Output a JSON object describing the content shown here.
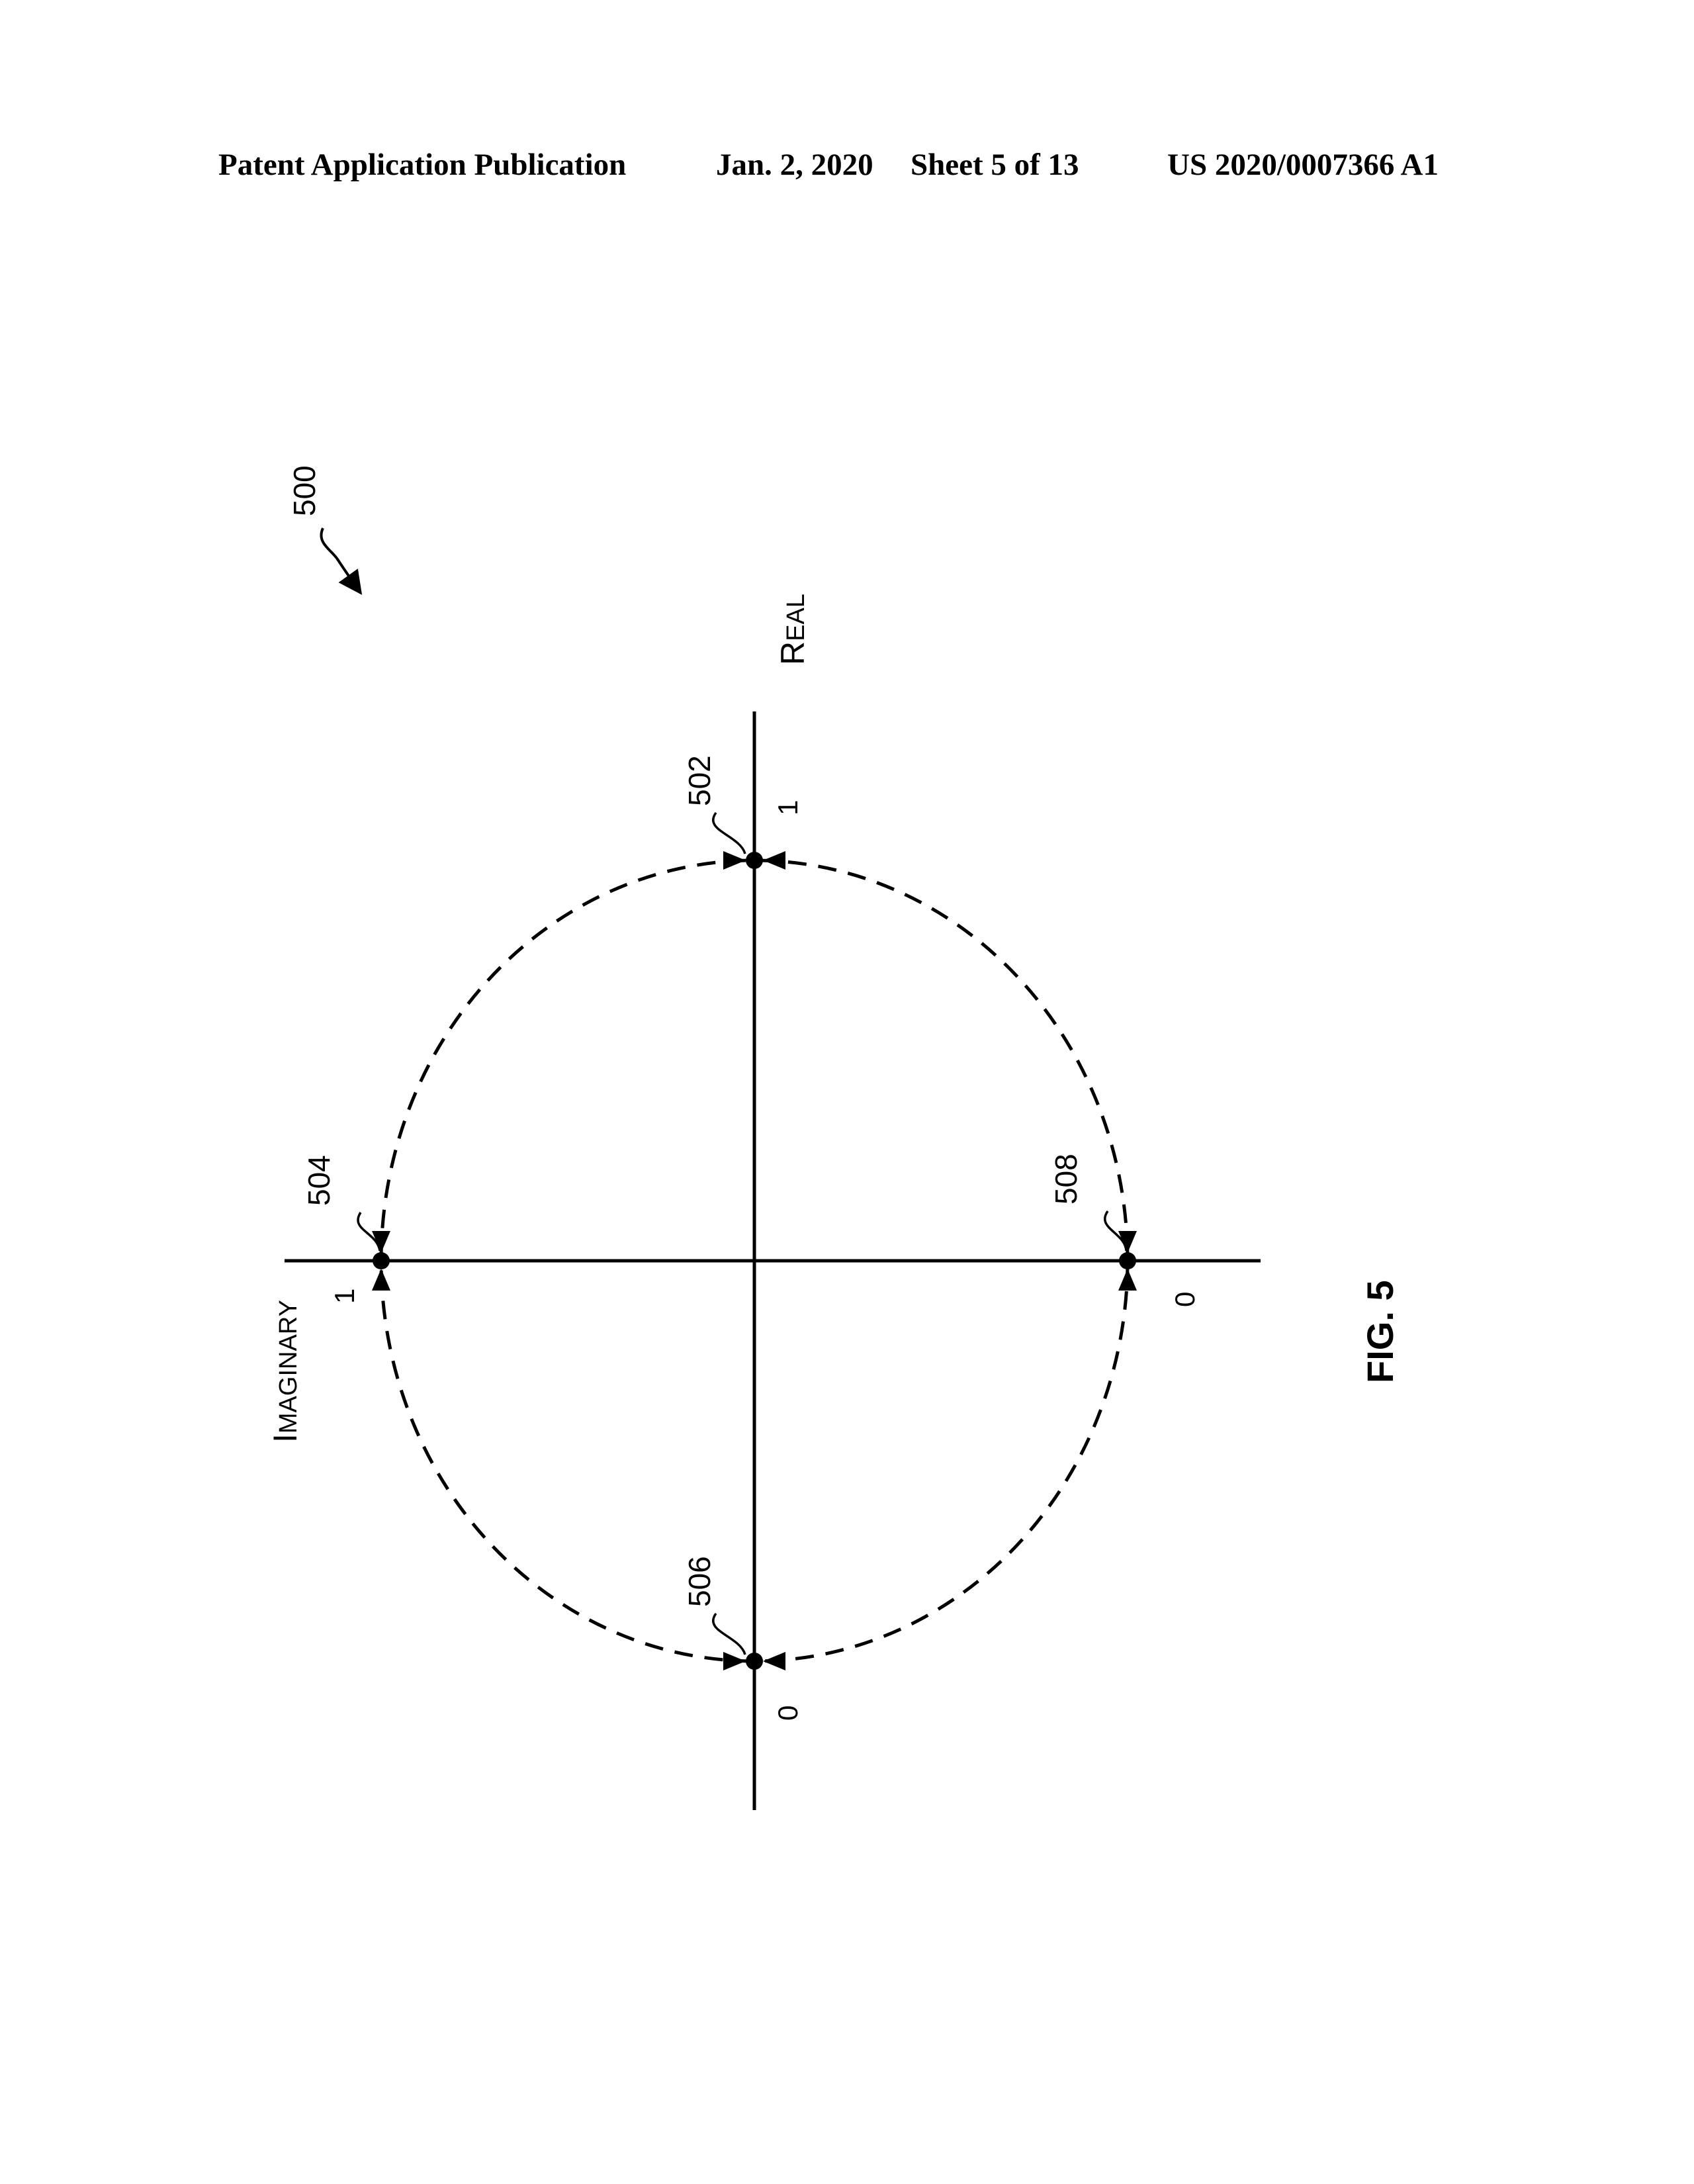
{
  "header": {
    "publication": "Patent Application Publication",
    "date": "Jan. 2, 2020",
    "sheet": "Sheet 5 of 13",
    "number": "US 2020/0007366 A1"
  },
  "figure": {
    "ref": "500",
    "caption": "FIG. 5",
    "axis_real": {
      "first": "R",
      "rest": "EAL"
    },
    "axis_imaginary": {
      "first": "I",
      "rest": "MAGINARY"
    },
    "tick_real_one": "1",
    "tick_real_zero": "0",
    "tick_imag_one": "1",
    "tick_imag_zero": "0",
    "points": [
      {
        "ref": "502"
      },
      {
        "ref": "504"
      },
      {
        "ref": "506"
      },
      {
        "ref": "508"
      }
    ]
  },
  "colors": {
    "ink": "#000000",
    "paper": "#ffffff"
  }
}
